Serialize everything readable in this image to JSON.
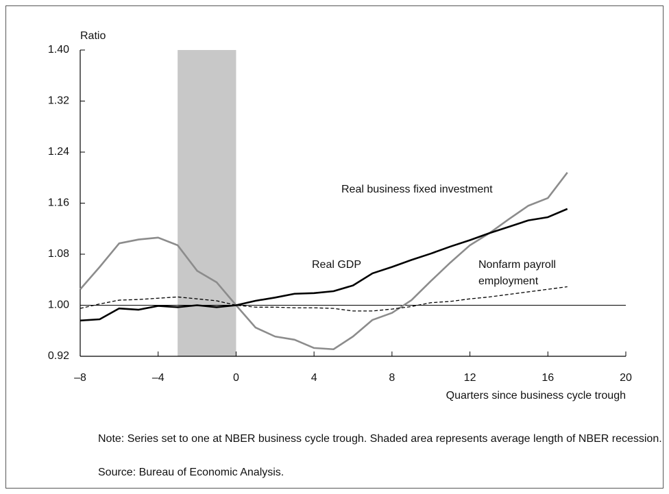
{
  "chart_data": {
    "type": "line",
    "y_label": "Ratio",
    "x_label": "Quarters since business cycle trough",
    "note": "Note: Series set to one at NBER business cycle trough. Shaded area represents average length of NBER recession.",
    "source": "Source: Bureau of Economic Analysis.",
    "x": [
      -8,
      -7,
      -6,
      -5,
      -4,
      -3,
      -2,
      -1,
      0,
      1,
      2,
      3,
      4,
      5,
      6,
      7,
      8,
      9,
      10,
      11,
      12,
      13,
      14,
      15,
      16,
      17
    ],
    "series": [
      {
        "name": "Real GDP",
        "color": "#000000",
        "dashed": false,
        "values": [
          0.976,
          0.978,
          0.995,
          0.993,
          0.999,
          0.997,
          1.0,
          0.997,
          1.0,
          1.007,
          1.012,
          1.018,
          1.019,
          1.022,
          1.031,
          1.05,
          1.06,
          1.071,
          1.081,
          1.092,
          1.102,
          1.113,
          1.123,
          1.133,
          1.138,
          1.151
        ]
      },
      {
        "name": "Real business fixed investment",
        "color": "#8c8c8c",
        "dashed": false,
        "values": [
          1.025,
          1.06,
          1.097,
          1.103,
          1.106,
          1.094,
          1.054,
          1.036,
          1.0,
          0.965,
          0.951,
          0.946,
          0.933,
          0.931,
          0.951,
          0.977,
          0.988,
          1.008,
          1.038,
          1.067,
          1.094,
          1.113,
          1.135,
          1.156,
          1.168,
          1.208
        ]
      },
      {
        "name": "Nonfarm payroll employment",
        "color": "#000000",
        "dashed": true,
        "values": [
          0.995,
          1.002,
          1.008,
          1.009,
          1.011,
          1.013,
          1.01,
          1.007,
          1.0,
          0.997,
          0.997,
          0.996,
          0.996,
          0.995,
          0.991,
          0.991,
          0.994,
          0.998,
          1.004,
          1.006,
          1.01,
          1.013,
          1.017,
          1.021,
          1.025,
          1.029
        ]
      }
    ],
    "shaded_region": [
      -3,
      0
    ],
    "reference_line": 1,
    "xlim": [
      -8,
      20
    ],
    "xticks": [
      {
        "value": -8,
        "label": "–8"
      },
      {
        "value": -4,
        "label": "–4"
      },
      0,
      4,
      8,
      12,
      16,
      20
    ],
    "ylim": [
      0.92,
      1.4
    ],
    "yticks": [
      0.92,
      {
        "value": 1.0,
        "label": "1.00"
      },
      1.08,
      1.16,
      1.24,
      1.32,
      {
        "value": 1.4,
        "label": "1.40"
      }
    ]
  }
}
